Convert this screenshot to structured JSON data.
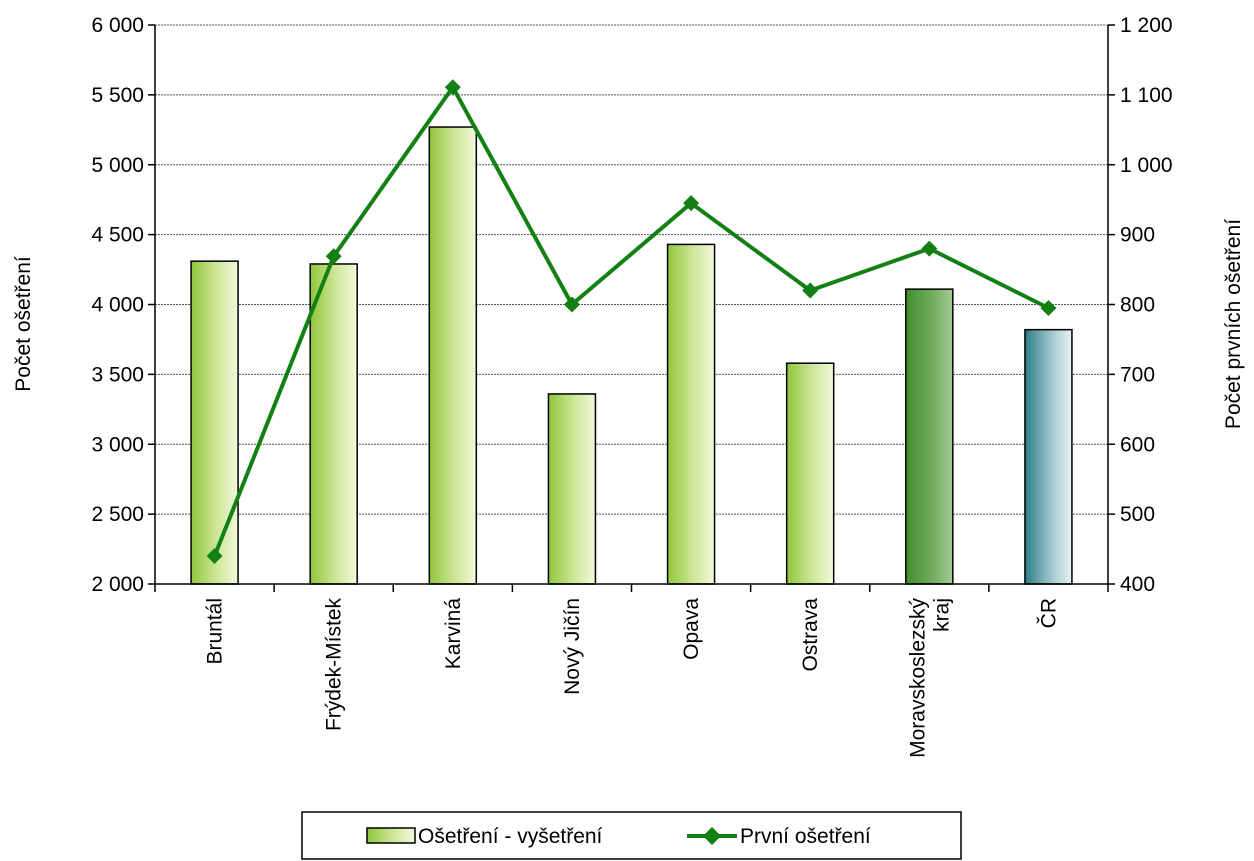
{
  "chart_data": {
    "type": "bar",
    "categories": [
      [
        "Bruntál"
      ],
      [
        "Frýdek-Místek"
      ],
      [
        "Karviná"
      ],
      [
        "Nový Jičín"
      ],
      [
        "Opava"
      ],
      [
        "Ostrava"
      ],
      [
        "Moravskoslezský",
        "kraj"
      ],
      [
        "ČR"
      ]
    ],
    "series": [
      {
        "name": "Ošetření - vyšetření",
        "kind": "bar",
        "axis": "left",
        "values": [
          4310,
          4290,
          5270,
          3360,
          4430,
          3580,
          4110,
          3820
        ],
        "colors": [
          "light-green",
          "light-green",
          "light-green",
          "light-green",
          "light-green",
          "light-green",
          "dark-green",
          "teal"
        ]
      },
      {
        "name": "První ošetření",
        "kind": "line",
        "axis": "right",
        "values": [
          440,
          869,
          1111,
          800,
          945,
          820,
          880,
          795
        ],
        "color": "#138013"
      }
    ],
    "ylabel": "Počet ošetření",
    "y2label": "Počet prvních ošetření",
    "ylim": [
      2000,
      6000
    ],
    "y2lim": [
      400,
      1200
    ],
    "yticks": [
      "2 000",
      "2 500",
      "3 000",
      "3 500",
      "4 000",
      "4 500",
      "5 000",
      "5 500",
      "6 000"
    ],
    "y2ticks": [
      "400",
      "500",
      "600",
      "700",
      "800",
      "900",
      "1 000",
      "1 100",
      "1 200"
    ],
    "grid": true,
    "legend_position": "bottom"
  }
}
